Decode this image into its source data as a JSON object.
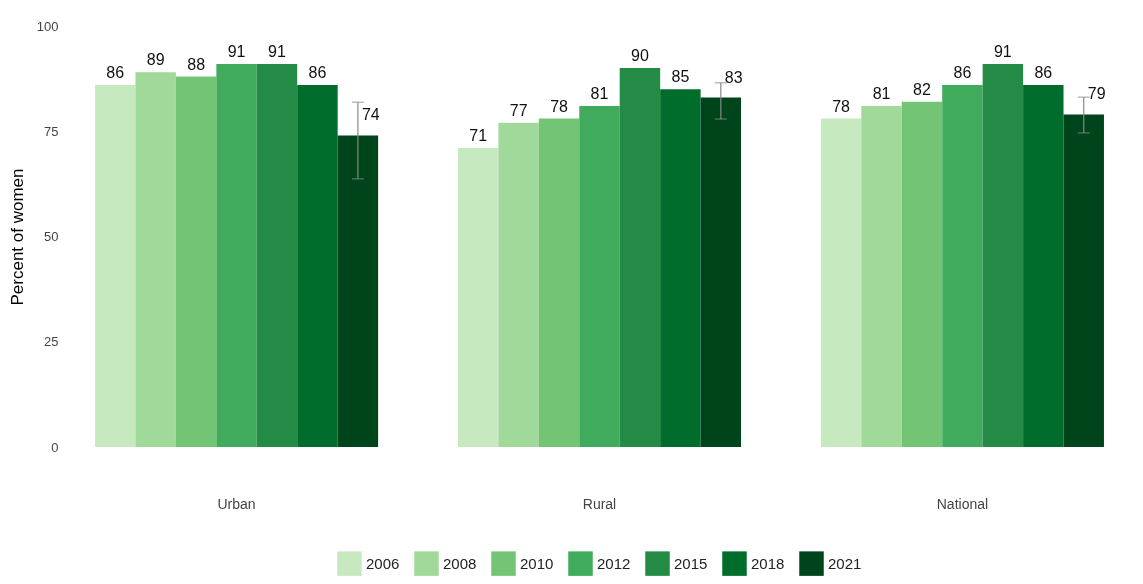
{
  "chart_data": {
    "type": "bar",
    "ylabel": "Percent of women",
    "categories": [
      "Urban",
      "Rural",
      "National"
    ],
    "series": [
      {
        "name": "2006",
        "color": "#c7e9c0",
        "values": [
          86,
          71,
          78
        ]
      },
      {
        "name": "2008",
        "color": "#a1d99b",
        "values": [
          89,
          77,
          81
        ]
      },
      {
        "name": "2010",
        "color": "#74c476",
        "values": [
          88,
          78,
          82
        ]
      },
      {
        "name": "2012",
        "color": "#41ab5d",
        "values": [
          91,
          81,
          86
        ]
      },
      {
        "name": "2015",
        "color": "#238b45",
        "values": [
          91,
          90,
          91
        ]
      },
      {
        "name": "2018",
        "color": "#006d2c",
        "values": [
          86,
          85,
          86
        ]
      },
      {
        "name": "2021",
        "color": "#00441b",
        "values": [
          74,
          83,
          79
        ],
        "errors": [
          [
            63.7,
            81.9
          ],
          [
            77.9,
            86.5
          ],
          [
            74.6,
            83.1
          ]
        ]
      }
    ],
    "ylim": [
      0,
      100
    ],
    "yticks": [
      0,
      25,
      50,
      75,
      100
    ],
    "grid": false,
    "legend": "bottom",
    "data_labels": true
  }
}
